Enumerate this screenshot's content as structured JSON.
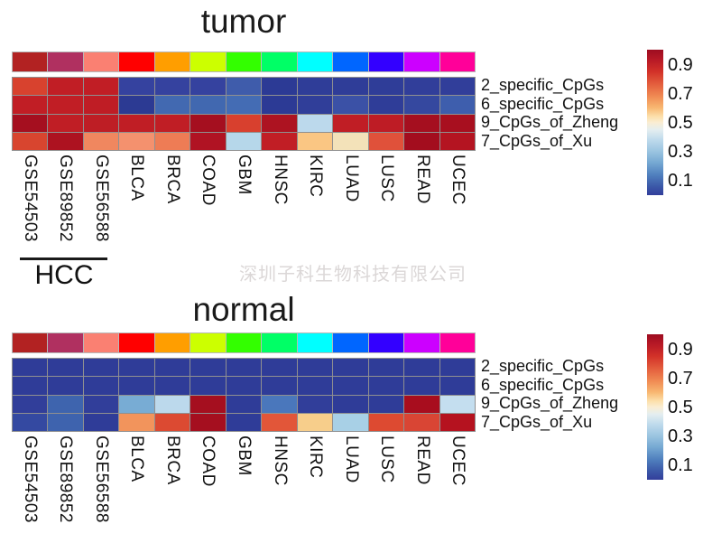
{
  "watermark": "深圳子科生物科技有限公司",
  "hcc_label": "HCC",
  "columns": [
    "GSE54503",
    "GSE89852",
    "GSE56588",
    "BLCA",
    "BRCA",
    "COAD",
    "GBM",
    "HNSC",
    "KIRC",
    "LUAD",
    "LUSC",
    "READ",
    "UCEC"
  ],
  "row_labels": [
    "2_specific_CpGs",
    "6_specific_CpGs",
    "9_CpGs_of_Zheng",
    "7_CpGs_of_Xu"
  ],
  "annotation_colors": [
    "#B22222",
    "#B03060",
    "#FA8072",
    "#FF0000",
    "#FF9E00",
    "#CCFF00",
    "#33FF00",
    "#00FF66",
    "#00FFFF",
    "#0066FF",
    "#3300FF",
    "#CC00FF",
    "#FF0099"
  ],
  "legend": {
    "ticks": [
      "0.9",
      "0.7",
      "0.5",
      "0.3",
      "0.1"
    ],
    "gradient": [
      "#9D0C20 0%",
      "#B81926 7%",
      "#D23128 15%",
      "#E4603E 24%",
      "#F08A53 32%",
      "#F8B872 40%",
      "#FCE0AC 46%",
      "#FAEDD2 50%",
      "#E4EEF0 55%",
      "#BEDAEC 62%",
      "#9AC4E0 70%",
      "#74A7D2 78%",
      "#5080BE 86%",
      "#3B58A8 94%",
      "#333E9B 100%"
    ]
  },
  "panels": [
    {
      "title": "tumor",
      "rows": [
        {
          "label": "2_specific_CpGs",
          "cells": [
            "#D8422E",
            "#C11E25",
            "#C11E25",
            "#35429F",
            "#35429F",
            "#35429F",
            "#3F5CAB",
            "#2C3A95",
            "#2F3D98",
            "#2F3D98",
            "#2F3D98",
            "#313E9A",
            "#313E9A"
          ]
        },
        {
          "label": "6_specific_CpGs",
          "cells": [
            "#C11E25",
            "#C11E25",
            "#BF1D25",
            "#2C3A93",
            "#4269B1",
            "#4168B0",
            "#446CB4",
            "#2C3A95",
            "#303E99",
            "#3B51A6",
            "#2F3D98",
            "#35489F",
            "#3E5EAD"
          ]
        },
        {
          "label": "9_CpGs_of_Zheng",
          "cells": [
            "#A50F1F",
            "#C01E25",
            "#BE1E25",
            "#C01E25",
            "#C01E25",
            "#A50F1F",
            "#D8402E",
            "#AD1321",
            "#BCD9EC",
            "#C01E25",
            "#BE1C25",
            "#A50F1F",
            "#A80F1F"
          ]
        },
        {
          "label": "7_CpGs_of_Xu",
          "cells": [
            "#D8452F",
            "#AD1220",
            "#F0875F",
            "#F4916E",
            "#EE7C55",
            "#B01323",
            "#B6D7EA",
            "#C11E25",
            "#FAC683",
            "#F3E2B9",
            "#E0513A",
            "#A30D1E",
            "#B41421"
          ]
        }
      ]
    },
    {
      "title": "normal",
      "rows": [
        {
          "label": "2_specific_CpGs",
          "cells": [
            "#2F3C98",
            "#2F3C98",
            "#2F3C98",
            "#2F3C98",
            "#2F3C98",
            "#2F3C98",
            "#2F3C98",
            "#2F3C98",
            "#2F3C98",
            "#2F3C98",
            "#2F3C98",
            "#2F3C98",
            "#2F3C98"
          ]
        },
        {
          "label": "6_specific_CpGs",
          "cells": [
            "#2F3C98",
            "#2F3C98",
            "#2F3C98",
            "#2F3C98",
            "#2F3C98",
            "#2F3C98",
            "#2F3C98",
            "#2F3C98",
            "#2F3C98",
            "#2F3C98",
            "#2F3C98",
            "#2F3C98",
            "#2F3C98"
          ]
        },
        {
          "label": "9_CpGs_of_Zheng",
          "cells": [
            "#313E9A",
            "#3E64AE",
            "#313E9A",
            "#78ACD4",
            "#BCD9EC",
            "#A50F1F",
            "#2F3C98",
            "#4A77BC",
            "#313E9A",
            "#2F3C98",
            "#2F3C98",
            "#A80D1E",
            "#C4DEEF"
          ]
        },
        {
          "label": "7_CpGs_of_Xu",
          "cells": [
            "#3449A1",
            "#3E63AE",
            "#2F3C98",
            "#F2945C",
            "#DC4A32",
            "#A50F1F",
            "#2F3C98",
            "#E25639",
            "#F7CE8B",
            "#A8D0E6",
            "#DD4A31",
            "#D94534",
            "#B5121F"
          ]
        }
      ]
    }
  ],
  "chart_data": [
    {
      "type": "heatmap",
      "title": "tumor",
      "x": [
        "GSE54503",
        "GSE89852",
        "GSE56588",
        "BLCA",
        "BRCA",
        "COAD",
        "GBM",
        "HNSC",
        "KIRC",
        "LUAD",
        "LUSC",
        "READ",
        "UCEC"
      ],
      "y": [
        "2_specific_CpGs",
        "6_specific_CpGs",
        "9_CpGs_of_Zheng",
        "7_CpGs_of_Xu"
      ],
      "values": [
        [
          0.82,
          0.89,
          0.89,
          0.09,
          0.09,
          0.09,
          0.13,
          0.04,
          0.05,
          0.05,
          0.05,
          0.06,
          0.06
        ],
        [
          0.89,
          0.89,
          0.9,
          0.04,
          0.16,
          0.16,
          0.17,
          0.04,
          0.06,
          0.11,
          0.05,
          0.1,
          0.14
        ],
        [
          0.98,
          0.89,
          0.9,
          0.89,
          0.89,
          0.98,
          0.82,
          0.95,
          0.35,
          0.89,
          0.9,
          0.98,
          0.97
        ],
        [
          0.81,
          0.95,
          0.7,
          0.67,
          0.72,
          0.94,
          0.34,
          0.89,
          0.58,
          0.5,
          0.79,
          0.98,
          0.93
        ]
      ],
      "colorscale": "RdYlBu reversed (blue=low, red=high)",
      "colorbar_ticks": [
        0.9,
        0.7,
        0.5,
        0.3,
        0.1
      ],
      "value_range": [
        0,
        1
      ],
      "column_group": {
        "label": "HCC",
        "columns": [
          "GSE54503",
          "GSE89852",
          "GSE56588"
        ]
      },
      "legend_position": "right"
    },
    {
      "type": "heatmap",
      "title": "normal",
      "x": [
        "GSE54503",
        "GSE89852",
        "GSE56588",
        "BLCA",
        "BRCA",
        "COAD",
        "GBM",
        "HNSC",
        "KIRC",
        "LUAD",
        "LUSC",
        "READ",
        "UCEC"
      ],
      "y": [
        "2_specific_CpGs",
        "6_specific_CpGs",
        "9_CpGs_of_Zheng",
        "7_CpGs_of_Xu"
      ],
      "values": [
        [
          0.05,
          0.05,
          0.05,
          0.05,
          0.05,
          0.05,
          0.05,
          0.05,
          0.05,
          0.05,
          0.05,
          0.05,
          0.05
        ],
        [
          0.05,
          0.05,
          0.05,
          0.05,
          0.05,
          0.05,
          0.05,
          0.05,
          0.05,
          0.05,
          0.05,
          0.05,
          0.05
        ],
        [
          0.06,
          0.15,
          0.06,
          0.25,
          0.35,
          0.98,
          0.05,
          0.18,
          0.06,
          0.05,
          0.05,
          0.97,
          0.37
        ],
        [
          0.1,
          0.15,
          0.05,
          0.68,
          0.8,
          0.98,
          0.05,
          0.78,
          0.56,
          0.32,
          0.8,
          0.8,
          0.93
        ]
      ],
      "colorscale": "RdYlBu reversed (blue=low, red=high)",
      "colorbar_ticks": [
        0.9,
        0.7,
        0.5,
        0.3,
        0.1
      ],
      "value_range": [
        0,
        1
      ],
      "legend_position": "right"
    }
  ]
}
